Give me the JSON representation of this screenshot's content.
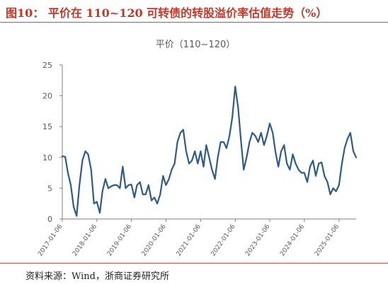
{
  "figure": {
    "title": "图10：  平价在 110~120 可转债的转股溢价率估值走势（%）",
    "source": "资料来源：Wind，浙商证券研究所"
  },
  "colors": {
    "line": "#2e5b87",
    "axis": "#7f7f7f",
    "tick_text": "#595959",
    "accent": "#c0504d"
  },
  "chart_data": {
    "type": "line",
    "title": "平价（110~120）",
    "xlabel": "",
    "ylabel": "",
    "ylim": [
      0,
      25
    ],
    "y_ticks": [
      0,
      5,
      10,
      15,
      20,
      25
    ],
    "grid": false,
    "legend": "none",
    "x_tick_labels": [
      "2017-01-06",
      "2018-01-06",
      "2019-01-06",
      "2020-01-06",
      "2021-01-06",
      "2022-01-06",
      "2023-01-06",
      "2024-01-06",
      "2025-01-06"
    ],
    "series": [
      {
        "x": [
          "2017-01-06",
          "2017-02-06",
          "2017-03-06",
          "2017-04-06",
          "2017-05-06",
          "2017-06-06",
          "2017-07-06",
          "2017-08-06",
          "2017-09-06",
          "2017-10-06",
          "2017-11-06",
          "2017-12-06",
          "2018-01-06",
          "2018-02-06",
          "2018-03-06",
          "2018-04-06",
          "2018-05-06",
          "2018-06-06",
          "2018-07-06",
          "2018-08-06",
          "2018-09-06",
          "2018-10-06",
          "2018-11-06",
          "2018-12-06",
          "2019-01-06",
          "2019-02-06",
          "2019-03-06",
          "2019-04-06",
          "2019-05-06",
          "2019-06-06",
          "2019-07-06",
          "2019-08-06",
          "2019-09-06",
          "2019-10-06",
          "2019-11-06",
          "2019-12-06",
          "2020-01-06",
          "2020-02-06",
          "2020-03-06",
          "2020-04-06",
          "2020-05-06",
          "2020-06-06",
          "2020-07-06",
          "2020-08-06",
          "2020-09-06",
          "2020-10-06",
          "2020-11-06",
          "2020-12-06",
          "2021-01-06",
          "2021-02-06",
          "2021-03-06",
          "2021-04-06",
          "2021-05-06",
          "2021-06-06",
          "2021-07-06",
          "2021-08-06",
          "2021-09-06",
          "2021-10-06",
          "2021-11-06",
          "2021-12-06",
          "2022-01-06",
          "2022-02-06",
          "2022-03-06",
          "2022-04-06",
          "2022-05-06",
          "2022-06-06",
          "2022-07-06",
          "2022-08-06",
          "2022-09-06",
          "2022-10-06",
          "2022-11-06",
          "2022-12-06",
          "2023-01-06",
          "2023-02-06",
          "2023-03-06",
          "2023-04-06",
          "2023-05-06",
          "2023-06-06",
          "2023-07-06",
          "2023-08-06",
          "2023-09-06",
          "2023-10-06",
          "2023-11-06",
          "2023-12-06",
          "2024-01-06",
          "2024-02-06",
          "2024-03-06",
          "2024-04-06",
          "2024-05-06",
          "2024-06-06",
          "2024-07-06",
          "2024-08-06",
          "2024-09-06",
          "2024-10-06",
          "2024-11-06",
          "2024-12-06",
          "2025-01-06",
          "2025-02-06",
          "2025-03-06",
          "2025-04-06",
          "2025-05-06",
          "2025-06-06",
          "2025-07-06"
        ],
        "values": [
          10.2,
          10.1,
          7.5,
          5.5,
          2.0,
          0.5,
          5.5,
          9.5,
          11.0,
          10.5,
          8.0,
          2.5,
          2.8,
          1.0,
          4.5,
          6.5,
          5.0,
          5.3,
          5.5,
          5.5,
          5.0,
          8.5,
          5.0,
          5.5,
          5.6,
          3.5,
          5.5,
          6.0,
          4.0,
          4.0,
          5.5,
          3.0,
          3.5,
          2.5,
          4.0,
          7.0,
          5.5,
          6.5,
          8.0,
          9.0,
          12.5,
          14.0,
          14.5,
          11.0,
          9.0,
          9.5,
          11.0,
          9.0,
          11.0,
          8.5,
          12.0,
          10.0,
          8.0,
          6.5,
          10.0,
          12.5,
          12.5,
          11.5,
          13.5,
          16.5,
          21.5,
          18.0,
          13.0,
          8.0,
          10.0,
          12.5,
          14.0,
          13.5,
          12.5,
          14.0,
          12.0,
          13.5,
          15.5,
          14.0,
          11.0,
          8.5,
          11.0,
          12.0,
          9.0,
          8.0,
          10.5,
          9.0,
          8.0,
          7.5,
          7.5,
          6.0,
          8.5,
          9.5,
          7.0,
          9.0,
          9.2,
          7.0,
          6.0,
          4.0,
          5.0,
          4.5,
          5.5,
          9.0,
          11.5,
          13.0,
          14.0,
          11.0,
          10.0
        ]
      }
    ]
  }
}
